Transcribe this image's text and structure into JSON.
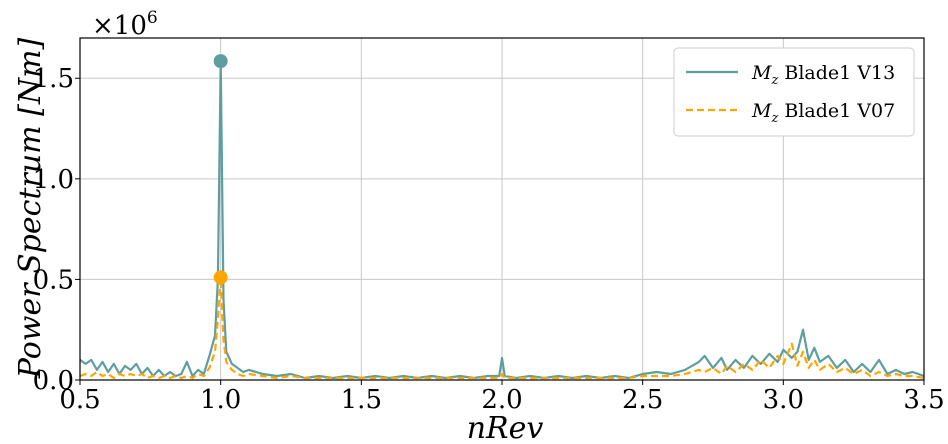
{
  "chart_data": {
    "type": "line",
    "xlabel": "nRev",
    "ylabel": "Power Spectrum [Nm]",
    "y_multiplier": "×10",
    "y_multiplier_exp": "6",
    "xlim": [
      0.5,
      3.5
    ],
    "ylim": [
      0,
      1.7
    ],
    "xticks": [
      "0.5",
      "1.0",
      "1.5",
      "2.0",
      "2.5",
      "3.0",
      "3.5"
    ],
    "yticks": [
      "0.0",
      "0.5",
      "1.0",
      "1.5"
    ],
    "xtick_values": [
      0.5,
      1.0,
      1.5,
      2.0,
      2.5,
      3.0,
      3.5
    ],
    "ytick_values": [
      0.0,
      0.5,
      1.0,
      1.5
    ],
    "grid": true,
    "legend_position": "top-right",
    "series": [
      {
        "name_main": "M",
        "name_sub": "z",
        "name_rest": " Blade1 V13",
        "color": "#5f9ea0",
        "style": "solid",
        "peak": {
          "x": 1.0,
          "y": 1.585
        },
        "points": [
          [
            0.5,
            0.1
          ],
          [
            0.52,
            0.08
          ],
          [
            0.54,
            0.1
          ],
          [
            0.56,
            0.05
          ],
          [
            0.58,
            0.09
          ],
          [
            0.6,
            0.04
          ],
          [
            0.62,
            0.08
          ],
          [
            0.64,
            0.03
          ],
          [
            0.66,
            0.07
          ],
          [
            0.68,
            0.05
          ],
          [
            0.7,
            0.08
          ],
          [
            0.72,
            0.03
          ],
          [
            0.74,
            0.06
          ],
          [
            0.76,
            0.02
          ],
          [
            0.78,
            0.05
          ],
          [
            0.8,
            0.02
          ],
          [
            0.82,
            0.04
          ],
          [
            0.84,
            0.02
          ],
          [
            0.86,
            0.03
          ],
          [
            0.88,
            0.09
          ],
          [
            0.9,
            0.02
          ],
          [
            0.92,
            0.05
          ],
          [
            0.94,
            0.03
          ],
          [
            0.96,
            0.12
          ],
          [
            0.98,
            0.22
          ],
          [
            0.99,
            0.5
          ],
          [
            1.0,
            1.585
          ],
          [
            1.01,
            0.4
          ],
          [
            1.02,
            0.14
          ],
          [
            1.04,
            0.08
          ],
          [
            1.06,
            0.06
          ],
          [
            1.08,
            0.04
          ],
          [
            1.1,
            0.05
          ],
          [
            1.15,
            0.03
          ],
          [
            1.2,
            0.02
          ],
          [
            1.25,
            0.03
          ],
          [
            1.3,
            0.01
          ],
          [
            1.35,
            0.02
          ],
          [
            1.4,
            0.01
          ],
          [
            1.45,
            0.02
          ],
          [
            1.5,
            0.01
          ],
          [
            1.55,
            0.02
          ],
          [
            1.6,
            0.01
          ],
          [
            1.65,
            0.02
          ],
          [
            1.7,
            0.01
          ],
          [
            1.75,
            0.02
          ],
          [
            1.8,
            0.01
          ],
          [
            1.85,
            0.02
          ],
          [
            1.9,
            0.01
          ],
          [
            1.95,
            0.02
          ],
          [
            1.99,
            0.02
          ],
          [
            2.0,
            0.11
          ],
          [
            2.01,
            0.02
          ],
          [
            2.05,
            0.01
          ],
          [
            2.1,
            0.02
          ],
          [
            2.15,
            0.01
          ],
          [
            2.2,
            0.02
          ],
          [
            2.25,
            0.01
          ],
          [
            2.3,
            0.02
          ],
          [
            2.35,
            0.01
          ],
          [
            2.4,
            0.02
          ],
          [
            2.45,
            0.01
          ],
          [
            2.5,
            0.03
          ],
          [
            2.55,
            0.04
          ],
          [
            2.6,
            0.03
          ],
          [
            2.65,
            0.05
          ],
          [
            2.7,
            0.09
          ],
          [
            2.72,
            0.12
          ],
          [
            2.75,
            0.06
          ],
          [
            2.78,
            0.11
          ],
          [
            2.8,
            0.05
          ],
          [
            2.83,
            0.1
          ],
          [
            2.86,
            0.06
          ],
          [
            2.89,
            0.12
          ],
          [
            2.92,
            0.08
          ],
          [
            2.95,
            0.13
          ],
          [
            2.98,
            0.09
          ],
          [
            3.0,
            0.15
          ],
          [
            3.03,
            0.11
          ],
          [
            3.05,
            0.14
          ],
          [
            3.07,
            0.25
          ],
          [
            3.09,
            0.1
          ],
          [
            3.11,
            0.16
          ],
          [
            3.13,
            0.09
          ],
          [
            3.16,
            0.12
          ],
          [
            3.19,
            0.06
          ],
          [
            3.22,
            0.1
          ],
          [
            3.25,
            0.04
          ],
          [
            3.28,
            0.08
          ],
          [
            3.31,
            0.04
          ],
          [
            3.34,
            0.1
          ],
          [
            3.37,
            0.03
          ],
          [
            3.4,
            0.05
          ],
          [
            3.43,
            0.03
          ],
          [
            3.46,
            0.04
          ],
          [
            3.5,
            0.02
          ]
        ]
      },
      {
        "name_main": "M",
        "name_sub": "z",
        "name_rest": " Blade1 V07",
        "color": "#ffa500",
        "style": "dashed",
        "peak": {
          "x": 1.0,
          "y": 0.51
        },
        "points": [
          [
            0.5,
            0.02
          ],
          [
            0.52,
            0.03
          ],
          [
            0.54,
            0.02
          ],
          [
            0.56,
            0.04
          ],
          [
            0.58,
            0.02
          ],
          [
            0.6,
            0.03
          ],
          [
            0.62,
            0.01
          ],
          [
            0.64,
            0.03
          ],
          [
            0.66,
            0.02
          ],
          [
            0.68,
            0.03
          ],
          [
            0.7,
            0.02
          ],
          [
            0.72,
            0.03
          ],
          [
            0.74,
            0.01
          ],
          [
            0.76,
            0.02
          ],
          [
            0.78,
            0.01
          ],
          [
            0.8,
            0.02
          ],
          [
            0.82,
            0.01
          ],
          [
            0.84,
            0.02
          ],
          [
            0.86,
            0.01
          ],
          [
            0.88,
            0.02
          ],
          [
            0.9,
            0.01
          ],
          [
            0.92,
            0.03
          ],
          [
            0.94,
            0.02
          ],
          [
            0.96,
            0.06
          ],
          [
            0.98,
            0.14
          ],
          [
            0.99,
            0.3
          ],
          [
            1.0,
            0.51
          ],
          [
            1.01,
            0.2
          ],
          [
            1.02,
            0.09
          ],
          [
            1.04,
            0.05
          ],
          [
            1.06,
            0.03
          ],
          [
            1.08,
            0.02
          ],
          [
            1.1,
            0.03
          ],
          [
            1.15,
            0.02
          ],
          [
            1.2,
            0.01
          ],
          [
            1.25,
            0.02
          ],
          [
            1.3,
            0.01
          ],
          [
            1.35,
            0.01
          ],
          [
            1.4,
            0.01
          ],
          [
            1.45,
            0.01
          ],
          [
            1.5,
            0.01
          ],
          [
            1.55,
            0.01
          ],
          [
            1.6,
            0.01
          ],
          [
            1.65,
            0.01
          ],
          [
            1.7,
            0.01
          ],
          [
            1.75,
            0.01
          ],
          [
            1.8,
            0.01
          ],
          [
            1.85,
            0.01
          ],
          [
            1.9,
            0.01
          ],
          [
            1.95,
            0.01
          ],
          [
            1.99,
            0.01
          ],
          [
            2.0,
            0.03
          ],
          [
            2.01,
            0.01
          ],
          [
            2.05,
            0.01
          ],
          [
            2.1,
            0.01
          ],
          [
            2.15,
            0.01
          ],
          [
            2.2,
            0.01
          ],
          [
            2.25,
            0.01
          ],
          [
            2.3,
            0.01
          ],
          [
            2.35,
            0.01
          ],
          [
            2.4,
            0.01
          ],
          [
            2.45,
            0.01
          ],
          [
            2.5,
            0.02
          ],
          [
            2.55,
            0.02
          ],
          [
            2.6,
            0.02
          ],
          [
            2.65,
            0.03
          ],
          [
            2.7,
            0.05
          ],
          [
            2.72,
            0.04
          ],
          [
            2.75,
            0.06
          ],
          [
            2.78,
            0.03
          ],
          [
            2.8,
            0.07
          ],
          [
            2.83,
            0.04
          ],
          [
            2.86,
            0.08
          ],
          [
            2.89,
            0.05
          ],
          [
            2.92,
            0.1
          ],
          [
            2.95,
            0.06
          ],
          [
            2.98,
            0.12
          ],
          [
            3.0,
            0.08
          ],
          [
            3.03,
            0.18
          ],
          [
            3.05,
            0.07
          ],
          [
            3.07,
            0.14
          ],
          [
            3.09,
            0.06
          ],
          [
            3.11,
            0.1
          ],
          [
            3.13,
            0.05
          ],
          [
            3.16,
            0.08
          ],
          [
            3.19,
            0.04
          ],
          [
            3.22,
            0.06
          ],
          [
            3.25,
            0.03
          ],
          [
            3.28,
            0.05
          ],
          [
            3.31,
            0.02
          ],
          [
            3.34,
            0.04
          ],
          [
            3.37,
            0.02
          ],
          [
            3.4,
            0.03
          ],
          [
            3.43,
            0.02
          ],
          [
            3.46,
            0.02
          ],
          [
            3.5,
            0.01
          ]
        ]
      }
    ]
  }
}
